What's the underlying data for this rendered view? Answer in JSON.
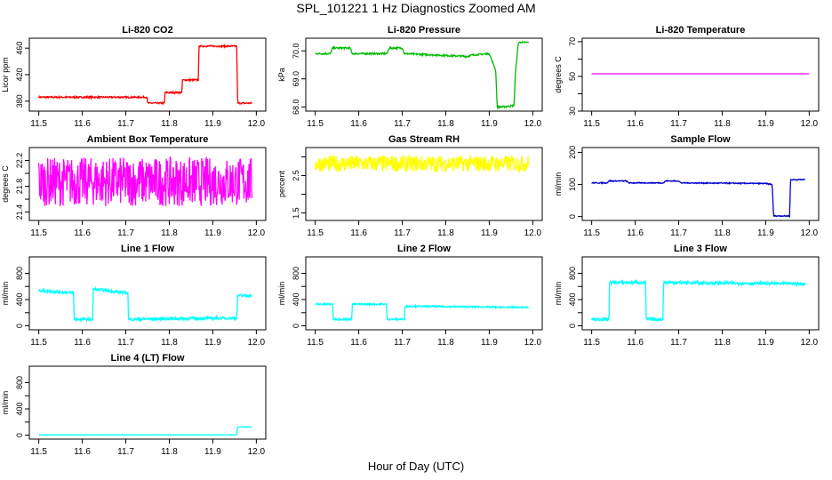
{
  "figure": {
    "title": "SPL_101221  1 Hz Diagnostics Zoomed AM",
    "xlabel": "Hour of Day (UTC)"
  },
  "chart_data": [
    {
      "type": "line",
      "title": "Li-820 CO2",
      "ylabel": "Licor ppm",
      "color": "#ff0000",
      "xlim": [
        11.5,
        12.0
      ],
      "ylim": [
        365,
        475
      ],
      "xticks": [
        11.5,
        11.6,
        11.7,
        11.8,
        11.9,
        12.0
      ],
      "xtick_labels": [
        "11.5",
        "11.6",
        "11.7",
        "11.8",
        "11.9",
        "12.0"
      ],
      "yticks": [
        380,
        420,
        460
      ],
      "ytick_labels": [
        "380",
        "420",
        "460"
      ],
      "x": [
        11.5,
        11.749,
        11.75,
        11.789,
        11.79,
        11.829,
        11.83,
        11.867,
        11.868,
        11.955,
        11.957,
        11.99
      ],
      "y": [
        386,
        386,
        377,
        377,
        393,
        393,
        412,
        412,
        463,
        463,
        377,
        377
      ],
      "noise": 1.2
    },
    {
      "type": "line",
      "title": "Li-820 Pressure",
      "ylabel": "kPa",
      "color": "#00bb00",
      "xlim": [
        11.5,
        12.0
      ],
      "ylim": [
        67.85,
        70.45
      ],
      "xticks": [
        11.5,
        11.6,
        11.7,
        11.8,
        11.9,
        12.0
      ],
      "xtick_labels": [
        "11.5",
        "11.6",
        "11.7",
        "11.8",
        "11.9",
        "12.0"
      ],
      "yticks": [
        68.0,
        69.0,
        70.0
      ],
      "ytick_labels": [
        "68.0",
        "69.0",
        "70.0"
      ],
      "x": [
        11.5,
        11.535,
        11.54,
        11.58,
        11.585,
        11.665,
        11.67,
        11.7,
        11.705,
        11.85,
        11.86,
        11.9,
        11.915,
        11.918,
        11.932,
        11.957,
        11.96,
        11.967,
        11.975,
        11.99
      ],
      "y": [
        69.9,
        69.9,
        70.1,
        70.1,
        69.9,
        69.9,
        70.1,
        70.1,
        69.9,
        69.8,
        69.85,
        69.9,
        69.3,
        68.0,
        68.0,
        68.05,
        69.2,
        70.3,
        70.3,
        70.3
      ],
      "noise": 0.03
    },
    {
      "type": "line",
      "title": "Li-820 Temperature",
      "ylabel": "degrees C",
      "color": "#ee00ee",
      "xlim": [
        11.5,
        12.0
      ],
      "ylim": [
        30,
        72
      ],
      "xticks": [
        11.5,
        11.6,
        11.7,
        11.8,
        11.9,
        12.0
      ],
      "xtick_labels": [
        "11.5",
        "11.6",
        "11.7",
        "11.8",
        "11.9",
        "12.0"
      ],
      "yticks": [
        30,
        40,
        50,
        60,
        70
      ],
      "ytick_labels": [
        "30",
        "",
        "50",
        "",
        "70"
      ],
      "x": [
        11.5,
        12.0
      ],
      "y": [
        51.5,
        51.5
      ],
      "noise": 0
    },
    {
      "type": "line",
      "title": "Ambient Box Temperature",
      "ylabel": "degrees C",
      "color": "#ff00ff",
      "xlim": [
        11.5,
        12.0
      ],
      "ylim": [
        21.27,
        22.4
      ],
      "xticks": [
        11.5,
        11.6,
        11.7,
        11.8,
        11.9,
        12.0
      ],
      "xtick_labels": [
        "11.5",
        "11.6",
        "11.7",
        "11.8",
        "11.9",
        "12.0"
      ],
      "yticks": [
        21.4,
        21.6,
        21.8,
        22.0,
        22.2
      ],
      "ytick_labels": [
        "21.4",
        "",
        "21.8",
        "",
        "22.2"
      ],
      "x": [
        11.5,
        11.99
      ],
      "y": [
        21.87,
        21.87
      ],
      "noise": 0.38
    },
    {
      "type": "line",
      "title": "Gas Stream RH",
      "ylabel": "percent",
      "color": "#ffff00",
      "xlim": [
        11.5,
        12.0
      ],
      "ylim": [
        1.3,
        3.25
      ],
      "xticks": [
        11.5,
        11.6,
        11.7,
        11.8,
        11.9,
        12.0
      ],
      "xtick_labels": [
        "11.5",
        "11.6",
        "11.7",
        "11.8",
        "11.9",
        "12.0"
      ],
      "yticks": [
        1.5,
        2.0,
        2.5,
        3.0
      ],
      "ytick_labels": [
        "1.5",
        "",
        "2.5",
        ""
      ],
      "x": [
        11.5,
        11.99
      ],
      "y": [
        2.82,
        2.82
      ],
      "noise": 0.22
    },
    {
      "type": "line",
      "title": "Sample Flow",
      "ylabel": "ml/min",
      "color": "#0000cc",
      "xlim": [
        11.5,
        12.0
      ],
      "ylim": [
        -12,
        215
      ],
      "xticks": [
        11.5,
        11.6,
        11.7,
        11.8,
        11.9,
        12.0
      ],
      "xtick_labels": [
        "11.5",
        "11.6",
        "11.7",
        "11.8",
        "11.9",
        "12.0"
      ],
      "yticks": [
        0,
        100,
        200
      ],
      "ytick_labels": [
        "0",
        "100",
        "200"
      ],
      "x": [
        11.5,
        11.535,
        11.54,
        11.58,
        11.585,
        11.665,
        11.67,
        11.7,
        11.705,
        11.9,
        11.915,
        11.918,
        11.955,
        11.957,
        11.99
      ],
      "y": [
        105,
        105,
        111,
        111,
        105,
        105,
        111,
        111,
        105,
        103,
        100,
        2,
        2,
        115,
        115
      ],
      "noise": 1.5
    },
    {
      "type": "line",
      "title": "Line 1 Flow",
      "ylabel": "ml/min",
      "color": "#00ffff",
      "xlim": [
        11.5,
        12.0
      ],
      "ylim": [
        -60,
        1050
      ],
      "xticks": [
        11.5,
        11.6,
        11.7,
        11.8,
        11.9,
        12.0
      ],
      "xtick_labels": [
        "11.5",
        "11.6",
        "11.7",
        "11.8",
        "11.9",
        "12.0"
      ],
      "yticks": [
        0,
        200,
        400,
        600,
        800
      ],
      "ytick_labels": [
        "0",
        "",
        "400",
        "",
        "800"
      ],
      "x": [
        11.5,
        11.58,
        11.581,
        11.624,
        11.625,
        11.705,
        11.706,
        11.955,
        11.957,
        11.99
      ],
      "y": [
        540,
        500,
        100,
        100,
        560,
        500,
        100,
        120,
        460,
        460
      ],
      "noise": 22
    },
    {
      "type": "line",
      "title": "Line 2 Flow",
      "ylabel": "ml/min",
      "color": "#00ffff",
      "xlim": [
        11.5,
        12.0
      ],
      "ylim": [
        -60,
        1050
      ],
      "xticks": [
        11.5,
        11.6,
        11.7,
        11.8,
        11.9,
        12.0
      ],
      "xtick_labels": [
        "11.5",
        "11.6",
        "11.7",
        "11.8",
        "11.9",
        "12.0"
      ],
      "yticks": [
        0,
        200,
        400,
        600,
        800
      ],
      "ytick_labels": [
        "0",
        "",
        "400",
        "",
        "800"
      ],
      "x": [
        11.5,
        11.54,
        11.541,
        11.584,
        11.585,
        11.664,
        11.665,
        11.705,
        11.706,
        11.99
      ],
      "y": [
        330,
        330,
        100,
        100,
        330,
        330,
        100,
        100,
        300,
        280
      ],
      "noise": 12
    },
    {
      "type": "line",
      "title": "Line 3 Flow",
      "ylabel": "ml/min",
      "color": "#00ffff",
      "xlim": [
        11.5,
        12.0
      ],
      "ylim": [
        -60,
        1050
      ],
      "xticks": [
        11.5,
        11.6,
        11.7,
        11.8,
        11.9,
        12.0
      ],
      "xtick_labels": [
        "11.5",
        "11.6",
        "11.7",
        "11.8",
        "11.9",
        "12.0"
      ],
      "yticks": [
        0,
        200,
        400,
        600,
        800
      ],
      "ytick_labels": [
        "0",
        "",
        "400",
        "",
        "800"
      ],
      "x": [
        11.5,
        11.54,
        11.541,
        11.624,
        11.625,
        11.664,
        11.665,
        11.99
      ],
      "y": [
        100,
        100,
        660,
        660,
        100,
        100,
        660,
        640
      ],
      "noise": 25
    },
    {
      "type": "line",
      "title": "Line 4 (LT) Flow",
      "ylabel": "ml/min",
      "color": "#00ffff",
      "xlim": [
        11.5,
        12.0
      ],
      "ylim": [
        -60,
        1050
      ],
      "xticks": [
        11.5,
        11.6,
        11.7,
        11.8,
        11.9,
        12.0
      ],
      "xtick_labels": [
        "11.5",
        "11.6",
        "11.7",
        "11.8",
        "11.9",
        "12.0"
      ],
      "yticks": [
        0,
        200,
        400,
        600,
        800
      ],
      "ytick_labels": [
        "0",
        "",
        "400",
        "",
        "800"
      ],
      "x": [
        11.5,
        11.955,
        11.957,
        11.99
      ],
      "y": [
        5,
        5,
        125,
        125
      ],
      "noise": 1
    }
  ]
}
